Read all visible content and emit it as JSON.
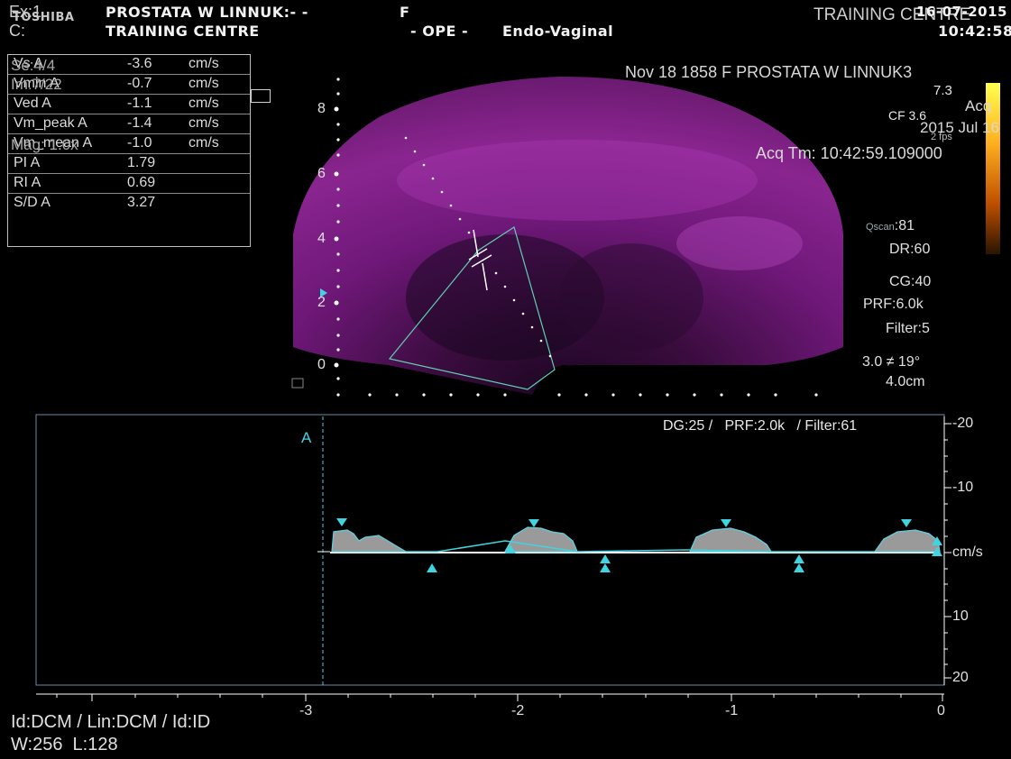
{
  "header": {
    "brand": "TOSHIBA",
    "overlap_ex": "Ex:1",
    "overlap_c": "C:",
    "patient_line": "PROSTATA W LINNUK:- -",
    "sex": "F",
    "centre": "TRAINING CENTRE",
    "mode": "- OPE -",
    "probe": "Endo-Vaginal",
    "right_centre": "TRAINING CENTRE",
    "date": "16-07-2015",
    "time": "10:42:58"
  },
  "overlay": {
    "series": "Se:4/4",
    "image": "Im:7/22",
    "magnification": "Mag: 1.0x",
    "study_line": "Nov 18 1858 F PROSTATA W LINNUK3",
    "acq": "Acq",
    "acq_date": "2015 Jul 16",
    "acq_time": "Acq Tm: 10:42:59.109000",
    "cg_small": "CF 3.6",
    "value_73": "7.3",
    "fps": "2 fps"
  },
  "measurements": {
    "rows": [
      {
        "label": "Vs  A",
        "value": "-3.6",
        "unit": "cm/s"
      },
      {
        "label": "Vmin  A",
        "value": "-0.7",
        "unit": "cm/s"
      },
      {
        "label": "Ved  A",
        "value": "-1.1",
        "unit": "cm/s"
      },
      {
        "label": "Vm_peak  A",
        "value": "-1.4",
        "unit": "cm/s"
      },
      {
        "label": "Vm_mean  A",
        "value": "-1.0",
        "unit": "cm/s"
      },
      {
        "label": "PI  A",
        "value": "1.79",
        "unit": ""
      },
      {
        "label": "RI  A",
        "value": "0.69",
        "unit": ""
      },
      {
        "label": "S/D  A",
        "value": "3.27",
        "unit": ""
      }
    ]
  },
  "depth_scale": [
    "8",
    "6",
    "4",
    "2",
    "0"
  ],
  "params": {
    "qscan_label": "Qscan",
    "qscan_value": ":81",
    "dr": "DR:60",
    "cg": "CG:40",
    "prf": "PRF:6.0k",
    "filter": "Filter:5",
    "angle": "3.0 ≠ 19°",
    "depth": "4.0cm"
  },
  "spectral": {
    "marker": "A",
    "info": "DG:25 /   PRF:2.0k   / Filter:61",
    "vel_ticks": [
      "-20",
      "-10",
      "cm/s",
      "10",
      "20"
    ],
    "time_ticks": [
      "-3",
      "-2",
      "-1",
      "0"
    ]
  },
  "footer": {
    "line1": "Id:DCM / Lin:DCM / Id:ID",
    "line2": "W:256  L:128"
  },
  "colors": {
    "bmode": "#8a1e8c",
    "box": "#5fd0b0",
    "marker": "#3fd4e0",
    "colorbar_top": "#ffff40",
    "colorbar_bottom": "#3a1a00"
  }
}
